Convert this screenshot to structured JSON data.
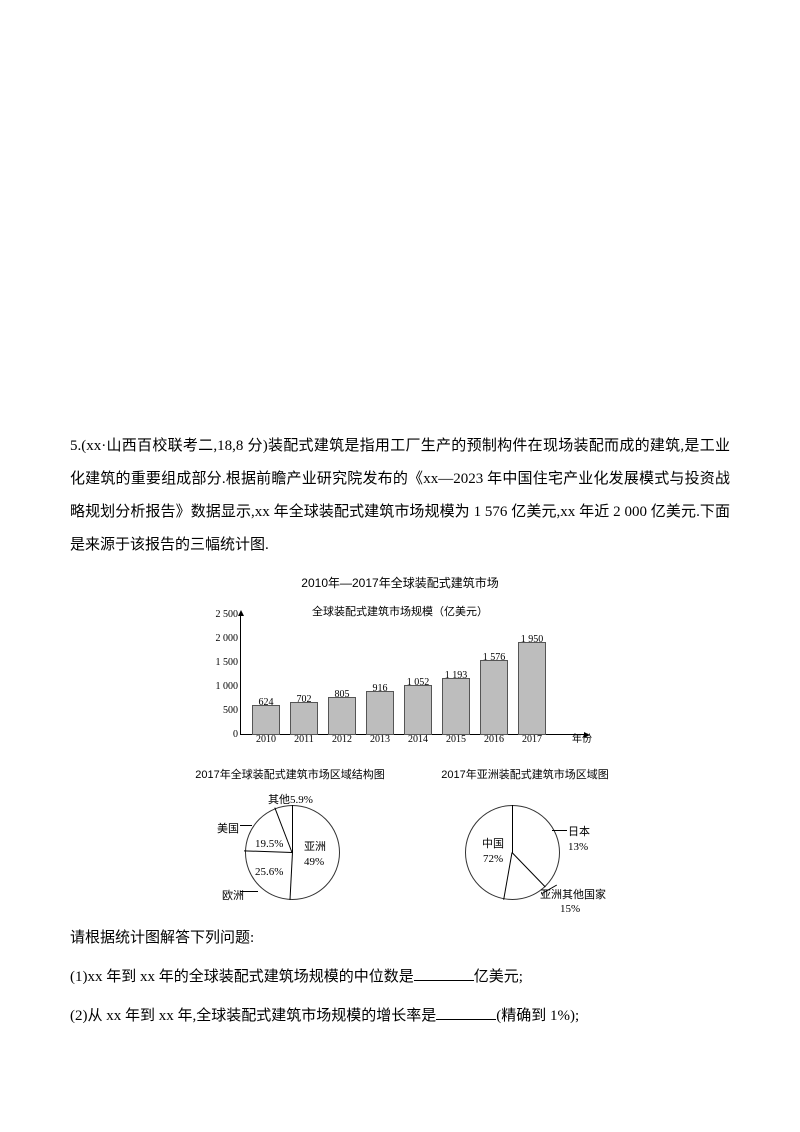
{
  "problem_number": "5.",
  "source": "(xx·山西百校联考二,18,8 分)",
  "intro_part1": "装配式建筑是指用工厂生产的预制构件在现场装配而成的建筑,是工业化建筑的重要组成部分.根据前瞻产业研究院发布的《xx—2023 年中国住宅产业化发展模式与投资战略规划分析报告》数据显示,xx 年全球装配式建筑市场规模为 1 576 亿美元,xx 年近 2 000 亿美元.下面是来源于该报告的三幅统计图.",
  "bar": {
    "title": "2010年—2017年全球装配式建筑市场",
    "axis_title": "全球装配式建筑市场规模（亿美元）",
    "x_label_suffix": "年份",
    "y": {
      "max": 2500,
      "ticks": [
        0,
        500,
        1000,
        1500,
        2000,
        2500
      ]
    },
    "items": [
      {
        "year": "2010",
        "value": 624
      },
      {
        "year": "2011",
        "value": 702
      },
      {
        "year": "2012",
        "value": 805
      },
      {
        "year": "2013",
        "value": 916
      },
      {
        "year": "2014",
        "value": "1 052",
        "num": 1052
      },
      {
        "year": "2015",
        "value": "1 193",
        "num": 1193
      },
      {
        "year": "2016",
        "value": "1 576",
        "num": 1576
      },
      {
        "year": "2017",
        "value": "1 950",
        "num": 1950
      }
    ],
    "colors": {
      "bar": "#bdbdbd",
      "bar_border": "#555"
    }
  },
  "pie_global": {
    "title": "2017年全球装配式建筑市场区域结构图",
    "slices": {
      "asia": {
        "label": "亚洲",
        "pct": 49
      },
      "europe": {
        "label": "欧洲",
        "pct": 25.6
      },
      "usa": {
        "label": "美国",
        "pct": 19.5
      },
      "other": {
        "label": "其他",
        "pct": 5.9
      }
    },
    "labels": {
      "other": "其他5.9%",
      "usa": "美国",
      "usa_pct": "19.5%",
      "europe": "25.6%",
      "europe_name": "欧洲",
      "asia": "亚洲",
      "asia_pct": "49%"
    }
  },
  "pie_asia": {
    "title": "2017年亚洲装配式建筑市场区域图",
    "slices": {
      "china": {
        "label": "中国",
        "pct": 72
      },
      "other": {
        "label": "亚洲其他国家",
        "pct": 15
      },
      "japan": {
        "label": "日本",
        "pct": 13
      }
    },
    "labels": {
      "china": "中国",
      "china_pct": "72%",
      "japan": "日本",
      "japan_pct": "13%",
      "other": "亚洲其他国家",
      "other_pct": "15%"
    }
  },
  "q_intro": "请根据统计图解答下列问题:",
  "q1_a": "(1)xx 年到 xx 年的全球装配式建筑场规模的中位数是",
  "q1_b": "亿美元;",
  "q2_a": "(2)从 xx 年到 xx 年,全球装配式建筑市场规模的增长率是",
  "q2_b": "(精确到 1%);"
}
